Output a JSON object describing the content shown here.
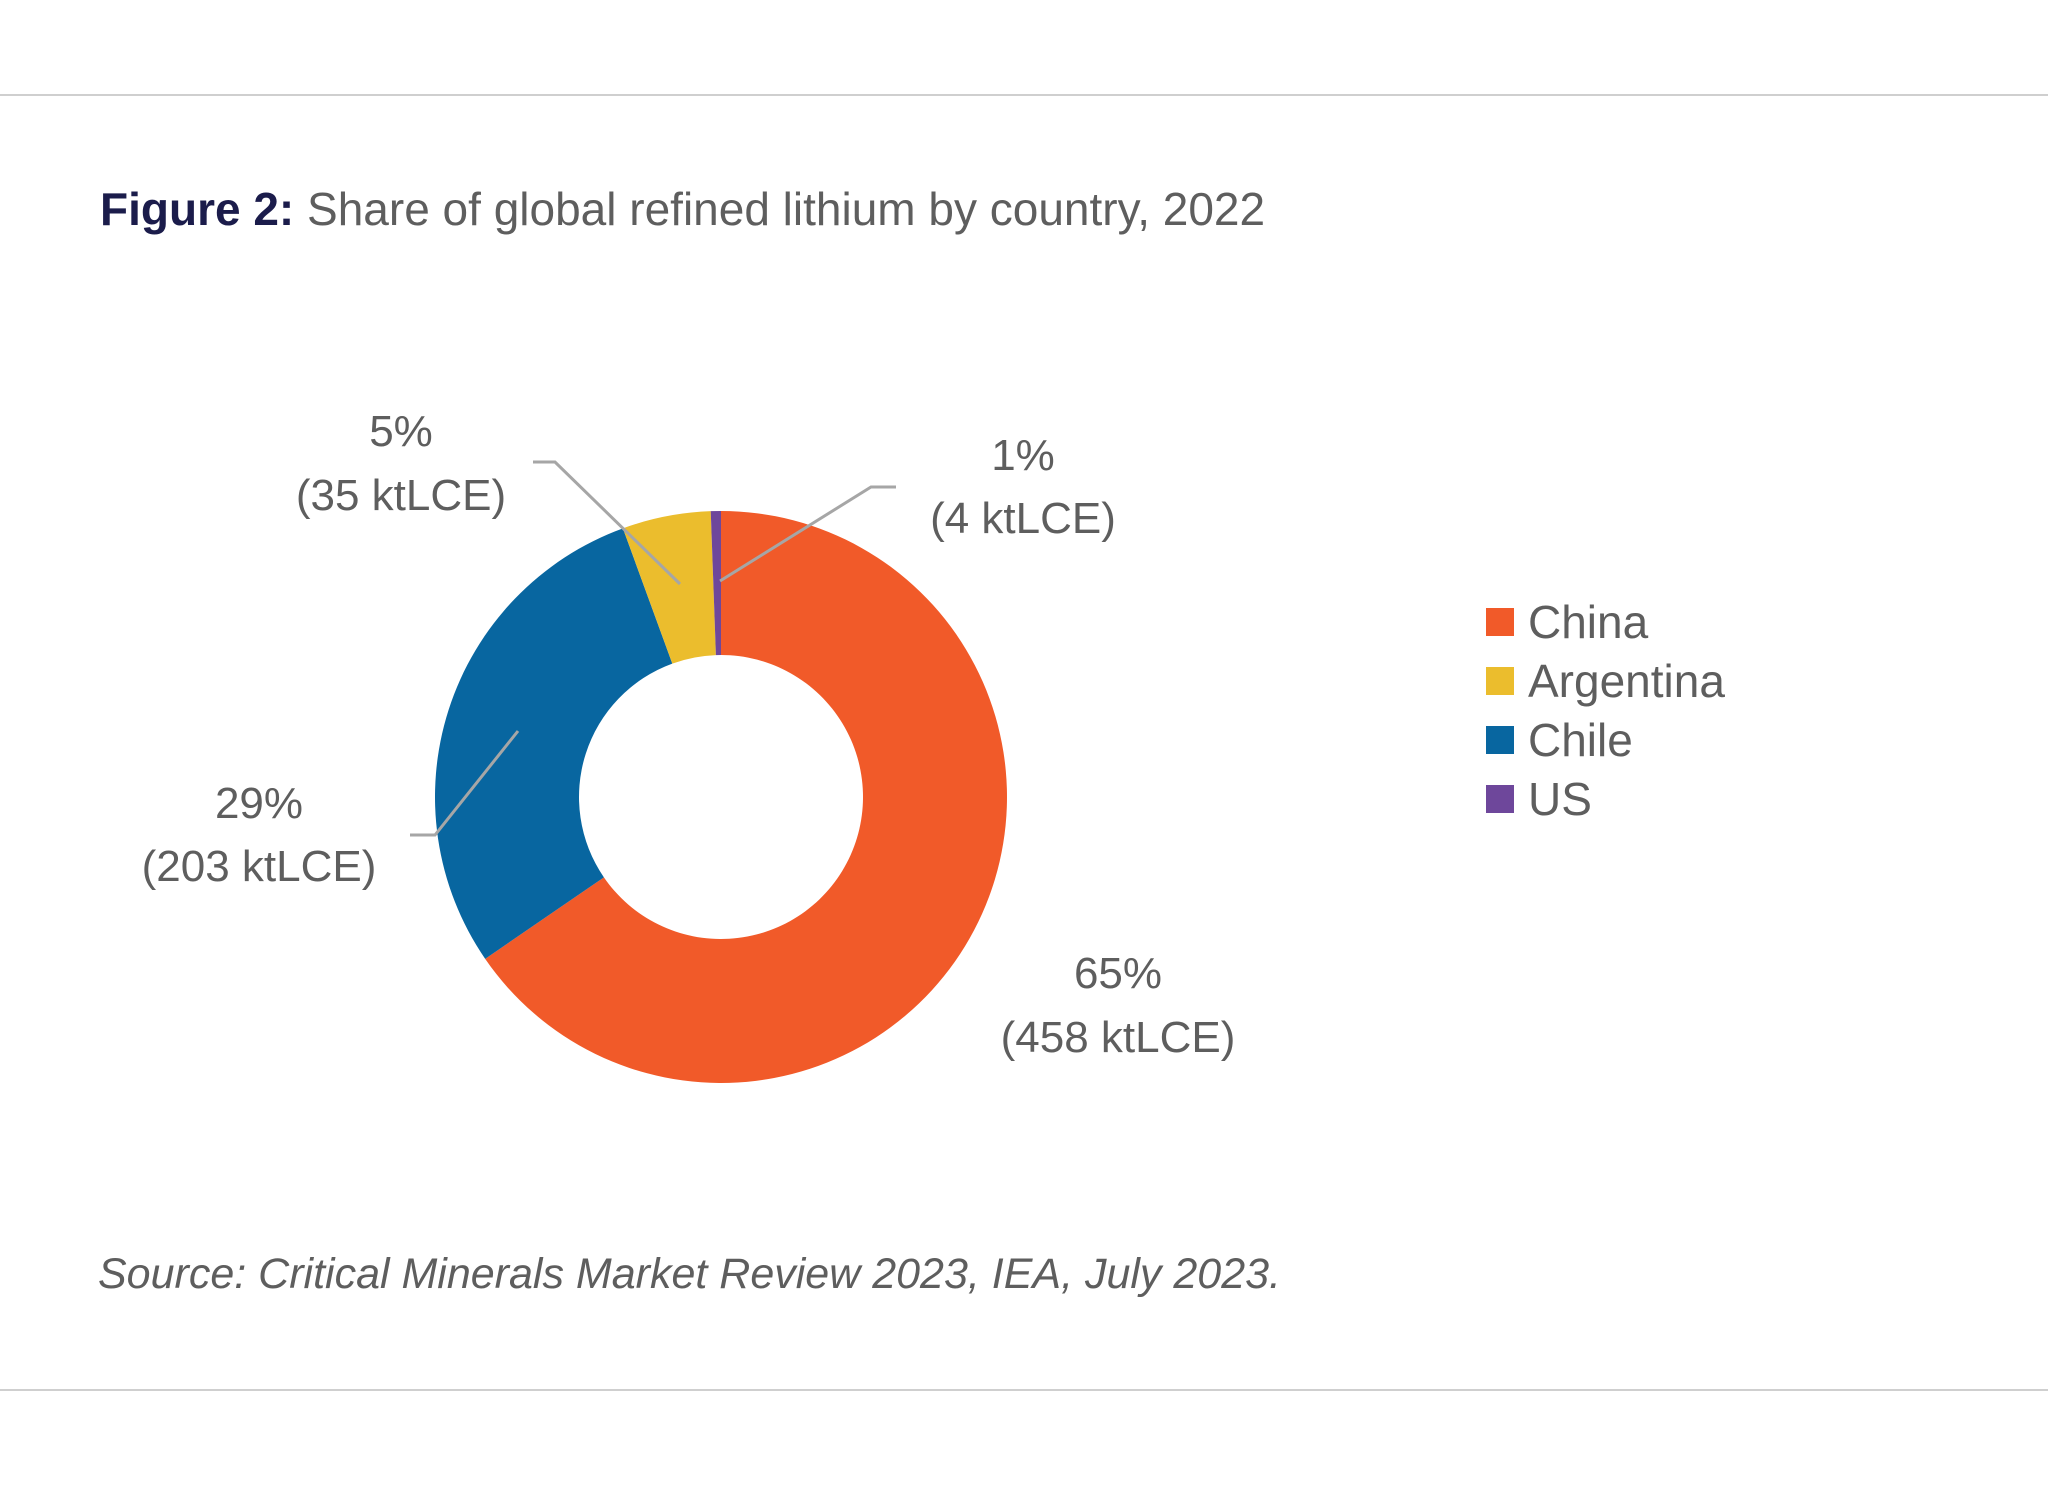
{
  "title": {
    "figure_label": "Figure 2:",
    "text": "Share of global refined lithium by country, 2022"
  },
  "source": "Source: Critical Minerals Market Review 2023, IEA, July 2023.",
  "chart_data": {
    "type": "pie",
    "variant": "donut",
    "title": "Share of global refined lithium by country, 2022",
    "unit": "ktLCE",
    "categories": [
      "China",
      "Chile",
      "Argentina",
      "US"
    ],
    "values": [
      458,
      203,
      35,
      4
    ],
    "percent_labels": [
      "65%",
      "29%",
      "5%",
      "1%"
    ],
    "value_labels": [
      "(458 ktLCE)",
      "(203 ktLCE)",
      "(35 ktLCE)",
      "(4 ktLCE)"
    ],
    "colors": [
      "#F15A29",
      "#0866A0",
      "#EBBD2D",
      "#6E479B"
    ],
    "legend": {
      "placement": "right",
      "entries": [
        "China",
        "Argentina",
        "Chile",
        "US"
      ],
      "colors": [
        "#F15A29",
        "#EBBD2D",
        "#0866A0",
        "#6E479B"
      ]
    }
  }
}
